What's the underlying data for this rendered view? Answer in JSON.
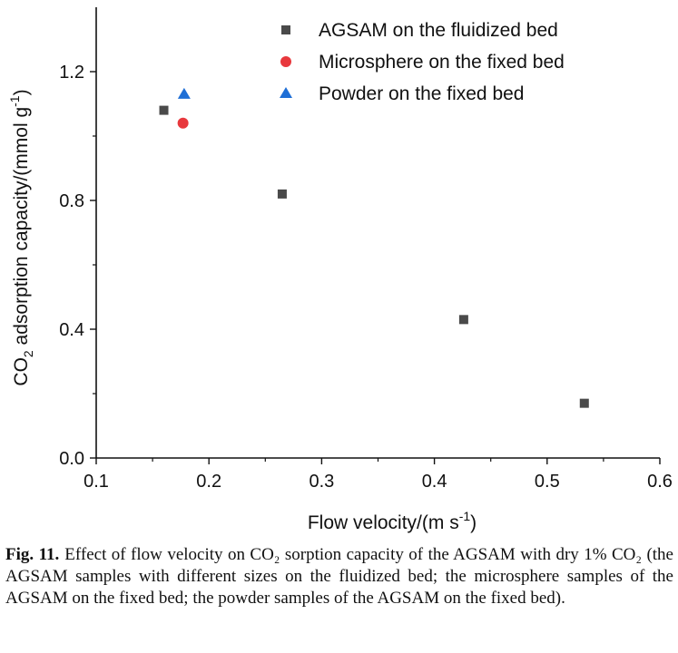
{
  "chart_data": {
    "type": "scatter",
    "xlabel": {
      "base": "Flow velocity/(m s",
      "sup": "-1",
      "tail": ")"
    },
    "ylabel": {
      "pre": "CO",
      "sub": "2",
      "mid": " adsorption capacity/(mmol g",
      "sup": "-1",
      "tail": ")"
    },
    "xlim": [
      0.1,
      0.6
    ],
    "ylim": [
      0.0,
      1.4
    ],
    "xticks": [
      0.1,
      0.2,
      0.3,
      0.4,
      0.5,
      0.6
    ],
    "xtick_labels": [
      "0.1",
      "0.2",
      "0.3",
      "0.4",
      "0.5",
      "0.6"
    ],
    "yticks": [
      0.0,
      0.4,
      0.8,
      1.2
    ],
    "ytick_labels": [
      "0.0",
      "0.4",
      "0.8",
      "1.2"
    ],
    "grid": false,
    "legend_position": "top-right",
    "series": [
      {
        "name": "AGSAM on the fluidized bed",
        "marker": "square",
        "color": "#4a4a4a",
        "x": [
          0.16,
          0.265,
          0.426,
          0.533
        ],
        "y": [
          1.08,
          0.82,
          0.43,
          0.17
        ]
      },
      {
        "name": "Microsphere on the fixed bed",
        "marker": "circle",
        "color": "#e8383d",
        "x": [
          0.177
        ],
        "y": [
          1.04
        ]
      },
      {
        "name": "Powder on the fixed bed",
        "marker": "triangle",
        "color": "#1f6fd6",
        "x": [
          0.178
        ],
        "y": [
          1.13
        ]
      }
    ]
  },
  "caption": {
    "label": "Fig. 11.",
    "text": "Effect of flow velocity on CO₂ sorption capacity of the AGSAM with dry 1% CO₂ (the AGSAM samples with different sizes on the fluidized bed; the microsphere samples of the AGSAM on the fixed bed; the powder samples of the AGSAM on the fixed bed)."
  }
}
